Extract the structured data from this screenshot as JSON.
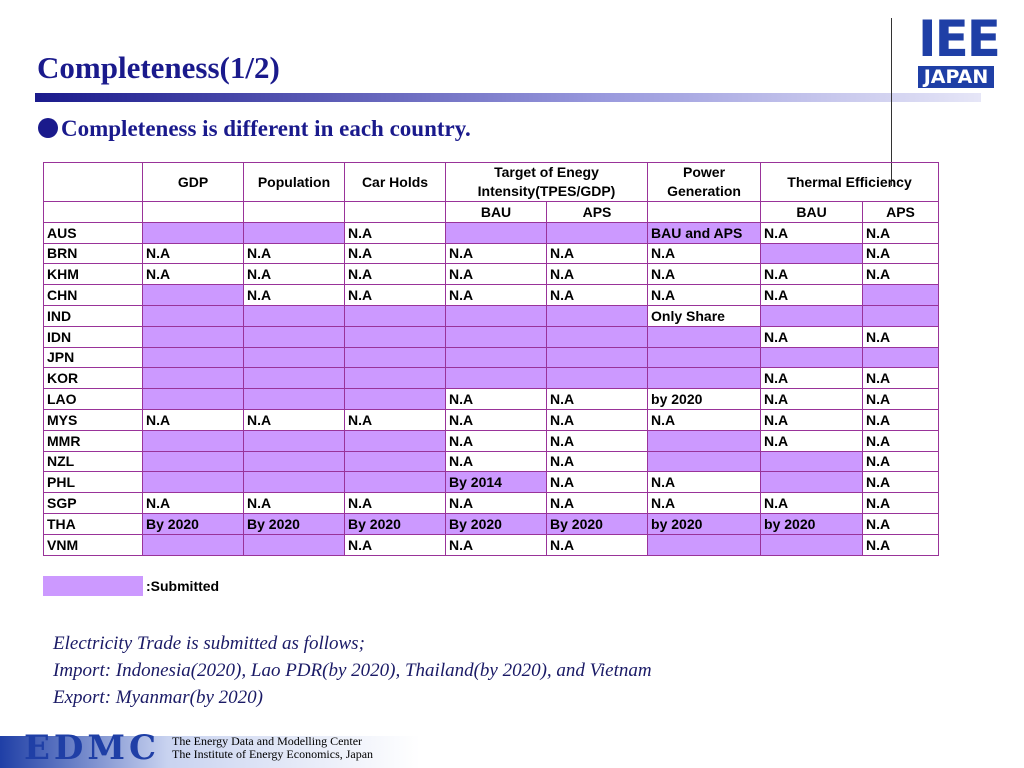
{
  "header": {
    "title": "Completeness(1/2)",
    "bullet": "Completeness is different in each country.",
    "logo": {
      "top": "IEE",
      "bottom": "JAPAN"
    }
  },
  "table": {
    "columns": [
      {
        "label": "GDP"
      },
      {
        "label": "Population"
      },
      {
        "label": "Car Holds"
      },
      {
        "label": "Target of Enegy Intensity(TPES/GDP)",
        "sub": [
          "BAU",
          "APS"
        ]
      },
      {
        "label": "Power Generation"
      },
      {
        "label": "Thermal Efficiency",
        "sub": [
          "BAU",
          "APS"
        ]
      }
    ],
    "rows": [
      {
        "label": "AUS",
        "cells": [
          null,
          null,
          "N.A",
          null,
          null,
          "BAU and APS",
          "N.A",
          "N.A"
        ],
        "submitted": [
          true,
          true,
          false,
          true,
          true,
          true,
          false,
          false
        ]
      },
      {
        "label": "BRN",
        "cells": [
          "N.A",
          "N.A",
          "N.A",
          "N.A",
          "N.A",
          "N.A",
          null,
          "N.A"
        ],
        "submitted": [
          false,
          false,
          false,
          false,
          false,
          false,
          true,
          false
        ]
      },
      {
        "label": "KHM",
        "cells": [
          "N.A",
          "N.A",
          "N.A",
          "N.A",
          "N.A",
          "N.A",
          "N.A",
          "N.A"
        ],
        "submitted": [
          false,
          false,
          false,
          false,
          false,
          false,
          false,
          false
        ]
      },
      {
        "label": "CHN",
        "cells": [
          null,
          "N.A",
          "N.A",
          "N.A",
          "N.A",
          "N.A",
          "N.A",
          null
        ],
        "submitted": [
          true,
          false,
          false,
          false,
          false,
          false,
          false,
          true
        ]
      },
      {
        "label": "IND",
        "cells": [
          null,
          null,
          null,
          null,
          null,
          "Only Share",
          null,
          null
        ],
        "submitted": [
          true,
          true,
          true,
          true,
          true,
          false,
          true,
          true
        ]
      },
      {
        "label": "IDN",
        "cells": [
          null,
          null,
          null,
          null,
          null,
          null,
          "N.A",
          "N.A"
        ],
        "submitted": [
          true,
          true,
          true,
          true,
          true,
          true,
          false,
          false
        ]
      },
      {
        "label": "JPN",
        "cells": [
          null,
          null,
          null,
          null,
          null,
          null,
          null,
          null
        ],
        "submitted": [
          true,
          true,
          true,
          true,
          true,
          true,
          true,
          true
        ]
      },
      {
        "label": "KOR",
        "cells": [
          null,
          null,
          null,
          null,
          null,
          null,
          "N.A",
          "N.A"
        ],
        "submitted": [
          true,
          true,
          true,
          true,
          true,
          true,
          false,
          false
        ]
      },
      {
        "label": "LAO",
        "cells": [
          null,
          null,
          null,
          "N.A",
          "N.A",
          "by 2020",
          "N.A",
          "N.A"
        ],
        "submitted": [
          true,
          true,
          true,
          false,
          false,
          false,
          false,
          false
        ]
      },
      {
        "label": "MYS",
        "cells": [
          "N.A",
          "N.A",
          "N.A",
          "N.A",
          "N.A",
          "N.A",
          "N.A",
          "N.A"
        ],
        "submitted": [
          false,
          false,
          false,
          false,
          false,
          false,
          false,
          false
        ]
      },
      {
        "label": "MMR",
        "cells": [
          null,
          null,
          null,
          "N.A",
          "N.A",
          null,
          "N.A",
          "N.A"
        ],
        "submitted": [
          true,
          true,
          true,
          false,
          false,
          true,
          false,
          false
        ]
      },
      {
        "label": "NZL",
        "cells": [
          null,
          null,
          null,
          "N.A",
          "N.A",
          null,
          null,
          "N.A"
        ],
        "submitted": [
          true,
          true,
          true,
          false,
          false,
          true,
          true,
          false
        ]
      },
      {
        "label": "PHL",
        "cells": [
          null,
          null,
          null,
          "By 2014",
          "N.A",
          "N.A",
          null,
          "N.A"
        ],
        "submitted": [
          true,
          true,
          true,
          true,
          false,
          false,
          true,
          false
        ]
      },
      {
        "label": "SGP",
        "cells": [
          "N.A",
          "N.A",
          "N.A",
          "N.A",
          "N.A",
          "N.A",
          "N.A",
          "N.A"
        ],
        "submitted": [
          false,
          false,
          false,
          false,
          false,
          false,
          false,
          false
        ]
      },
      {
        "label": "THA",
        "cells": [
          "By 2020",
          "By 2020",
          "By 2020",
          "By 2020",
          "By 2020",
          "by 2020",
          "by 2020",
          "N.A"
        ],
        "submitted": [
          true,
          true,
          true,
          true,
          true,
          true,
          true,
          false
        ]
      },
      {
        "label": "VNM",
        "cells": [
          null,
          null,
          "N.A",
          "N.A",
          "N.A",
          null,
          null,
          "N.A"
        ],
        "submitted": [
          true,
          true,
          false,
          false,
          false,
          true,
          true,
          false
        ]
      }
    ],
    "submitted_color": "#cc99ff"
  },
  "legend": ":Submitted",
  "notes": [
    "Electricity Trade is submitted as follows;",
    "Import: Indonesia(2020), Lao PDR(by 2020), Thailand(by 2020), and Vietnam",
    "Export: Myanmar(by 2020)"
  ],
  "footer": {
    "logo": "EDMC",
    "lines": [
      "The Energy Data and Modelling Center",
      "The Institute of Energy Economics, Japan"
    ]
  }
}
